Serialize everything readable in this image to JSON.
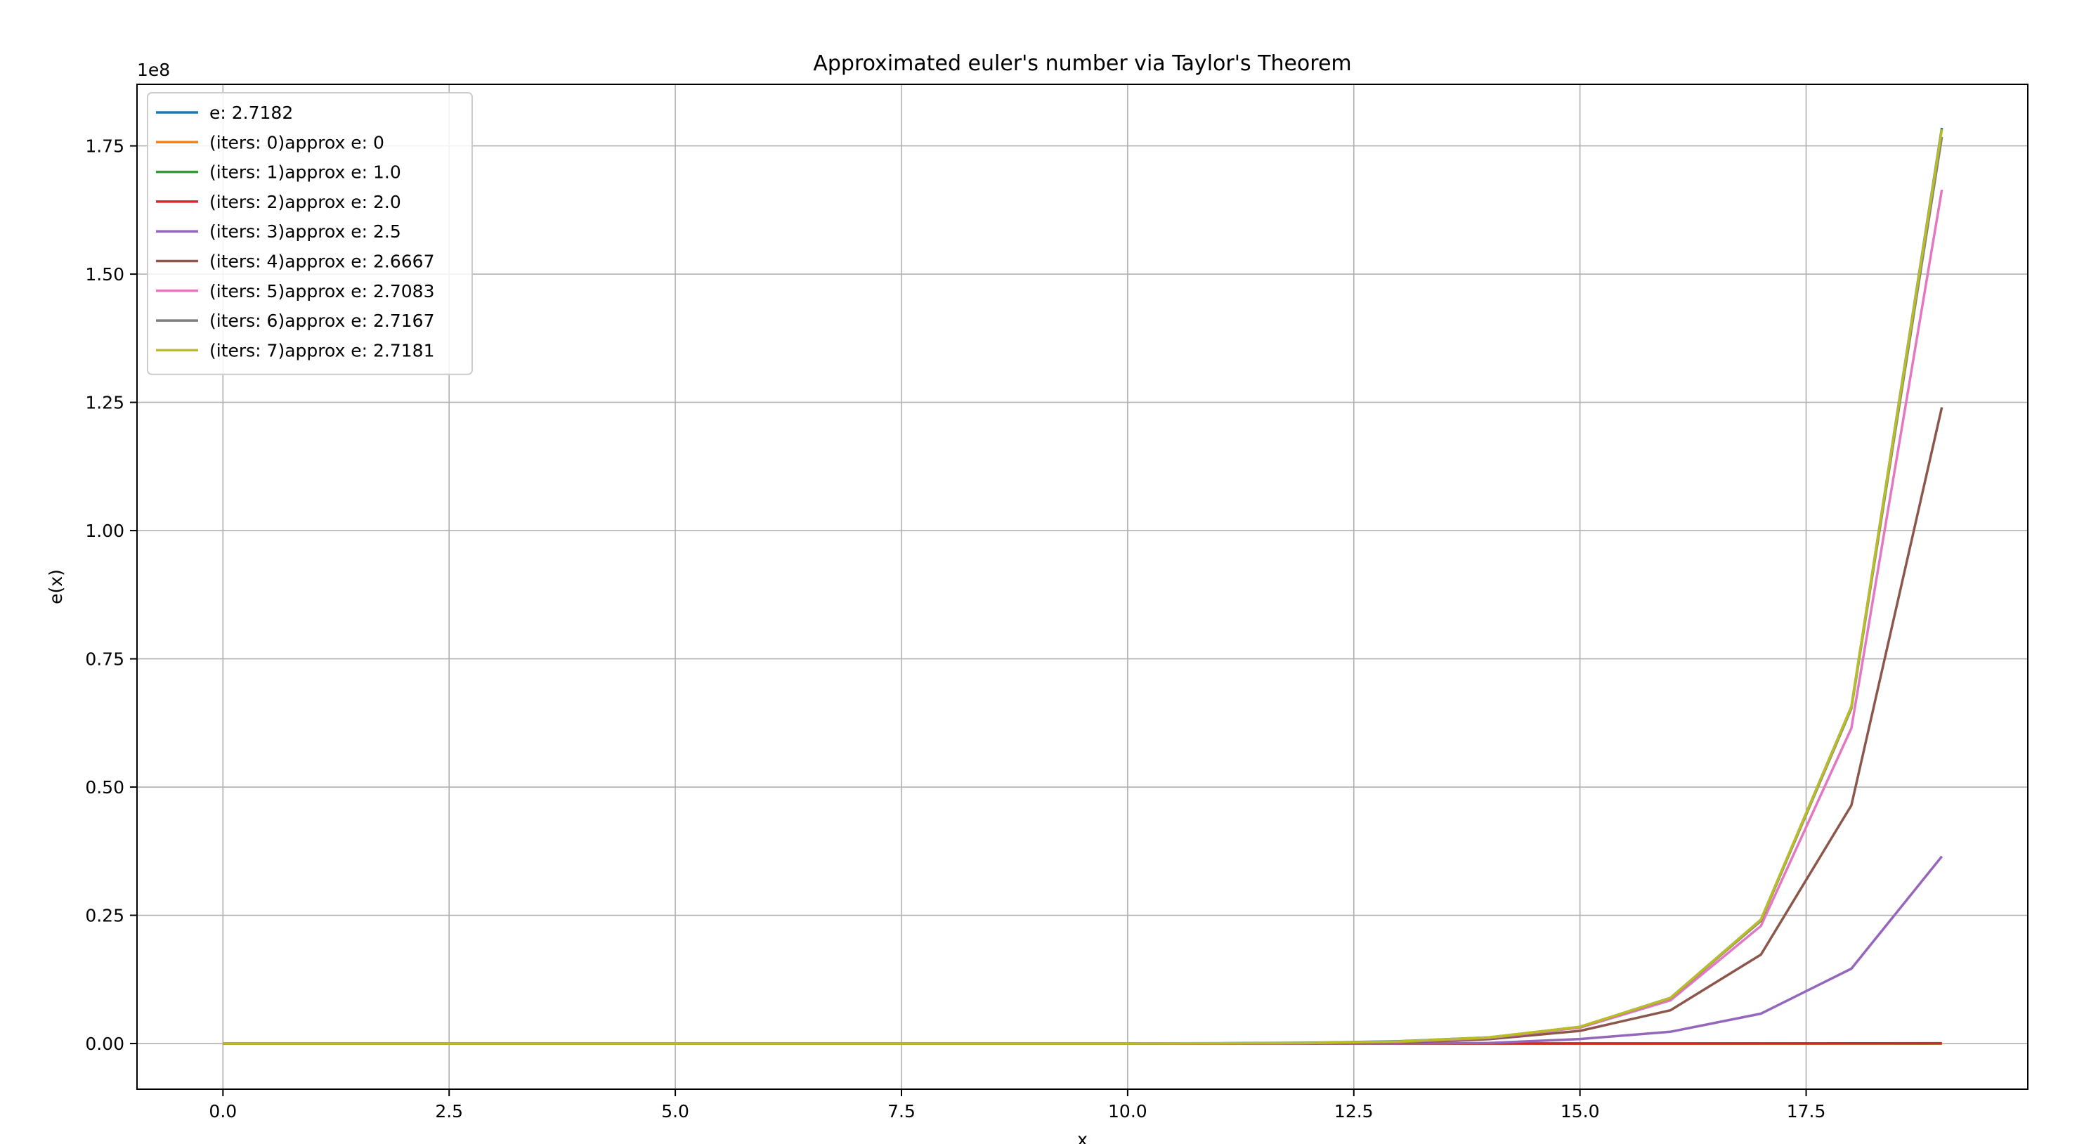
{
  "chart_data": {
    "type": "line",
    "title": "Approximated euler's number via Taylor's Theorem",
    "xlabel": "x",
    "ylabel": "e(x)",
    "y_offset_text": "1e8",
    "xlim": [
      -0.95,
      19.95
    ],
    "ylim": [
      -0.089,
      1.87
    ],
    "x_ticks": [
      0,
      2.5,
      5,
      7.5,
      10,
      12.5,
      15,
      17.5
    ],
    "x_tick_labels": [
      "0.0",
      "2.5",
      "5.0",
      "7.5",
      "10.0",
      "12.5",
      "15.0",
      "17.5"
    ],
    "y_ticks": [
      0,
      0.25,
      0.5,
      0.75,
      1.0,
      1.25,
      1.5,
      1.75
    ],
    "y_tick_labels": [
      "0.00",
      "0.25",
      "0.50",
      "0.75",
      "1.00",
      "1.25",
      "1.50",
      "1.75"
    ],
    "grid": true,
    "legend_position": "upper-left",
    "x": [
      0,
      1,
      2,
      3,
      4,
      5,
      6,
      7,
      8,
      9,
      10,
      11,
      12,
      13,
      14,
      15,
      16,
      17,
      18,
      19
    ],
    "series": [
      {
        "name": "e: 2.7182",
        "color": "#1f77b4",
        "values": [
          1e-08,
          3e-08,
          7e-08,
          2e-07,
          5.5e-07,
          1.5e-06,
          4e-06,
          1.1e-05,
          3e-05,
          8.1e-05,
          0.00022,
          0.0006,
          0.0016,
          0.0044,
          0.012,
          0.0327,
          0.0889,
          0.2415,
          0.6566,
          1.785
        ]
      },
      {
        "name": "(iters: 0)approx e: 0",
        "color": "#ff7f0e",
        "values": [
          0,
          0,
          0,
          0,
          0,
          0,
          0,
          0,
          0,
          0,
          0,
          0,
          0,
          0,
          0,
          0,
          0,
          0,
          0,
          0
        ]
      },
      {
        "name": "(iters: 1)approx e: 1.0",
        "color": "#2ca02c",
        "values": [
          0,
          0,
          0,
          0,
          0,
          0,
          0,
          0,
          0,
          0,
          0,
          0,
          0,
          0,
          0,
          0,
          0,
          0,
          0,
          0
        ]
      },
      {
        "name": "(iters: 2)approx e: 2.0",
        "color": "#d62728",
        "values": [
          0,
          0,
          0,
          0,
          0,
          0,
          0,
          0,
          0,
          0,
          0,
          0,
          0,
          0,
          0,
          3e-05,
          7e-05,
          0.00015,
          0.0003,
          0.0006
        ]
      },
      {
        "name": "(iters: 3)approx e: 2.5",
        "color": "#9467bd",
        "values": [
          0,
          0,
          0,
          0,
          0,
          0,
          0,
          0,
          0,
          0,
          0,
          0,
          0.0001,
          0.0004,
          0.0011,
          0.0088,
          0.0229,
          0.0582,
          0.1459,
          0.3648
        ]
      },
      {
        "name": "(iters: 4)approx e: 2.6667",
        "color": "#8c564b",
        "values": [
          0,
          0,
          0,
          0,
          0,
          0,
          0,
          0,
          0,
          0,
          0,
          0.0001,
          0.0005,
          0.0015,
          0.0085,
          0.0247,
          0.0648,
          0.1734,
          0.4643,
          1.2404
        ]
      },
      {
        "name": "(iters: 5)approx e: 2.7083",
        "color": "#e377c2",
        "values": [
          0,
          0,
          0,
          0,
          0,
          0,
          0,
          0,
          0,
          0,
          0,
          0.0002,
          0.0008,
          0.003,
          0.011,
          0.031,
          0.0842,
          0.2292,
          0.6146,
          1.6645
        ]
      },
      {
        "name": "(iters: 6)approx e: 2.7167",
        "color": "#7f7f7f",
        "values": [
          0,
          0,
          0,
          0,
          0,
          0,
          0,
          0,
          0,
          0,
          0,
          0.0003,
          0.0012,
          0.0038,
          0.0118,
          0.0324,
          0.0882,
          0.2393,
          0.6529,
          1.7675
        ]
      },
      {
        "name": "(iters: 7)approx e: 2.7181",
        "color": "#bcbd22",
        "values": [
          0,
          0,
          0,
          0,
          0,
          0,
          0,
          0,
          0,
          0,
          0,
          0.0003,
          0.0012,
          0.004,
          0.0121,
          0.0327,
          0.0888,
          0.2414,
          0.6563,
          1.782
        ]
      }
    ]
  }
}
